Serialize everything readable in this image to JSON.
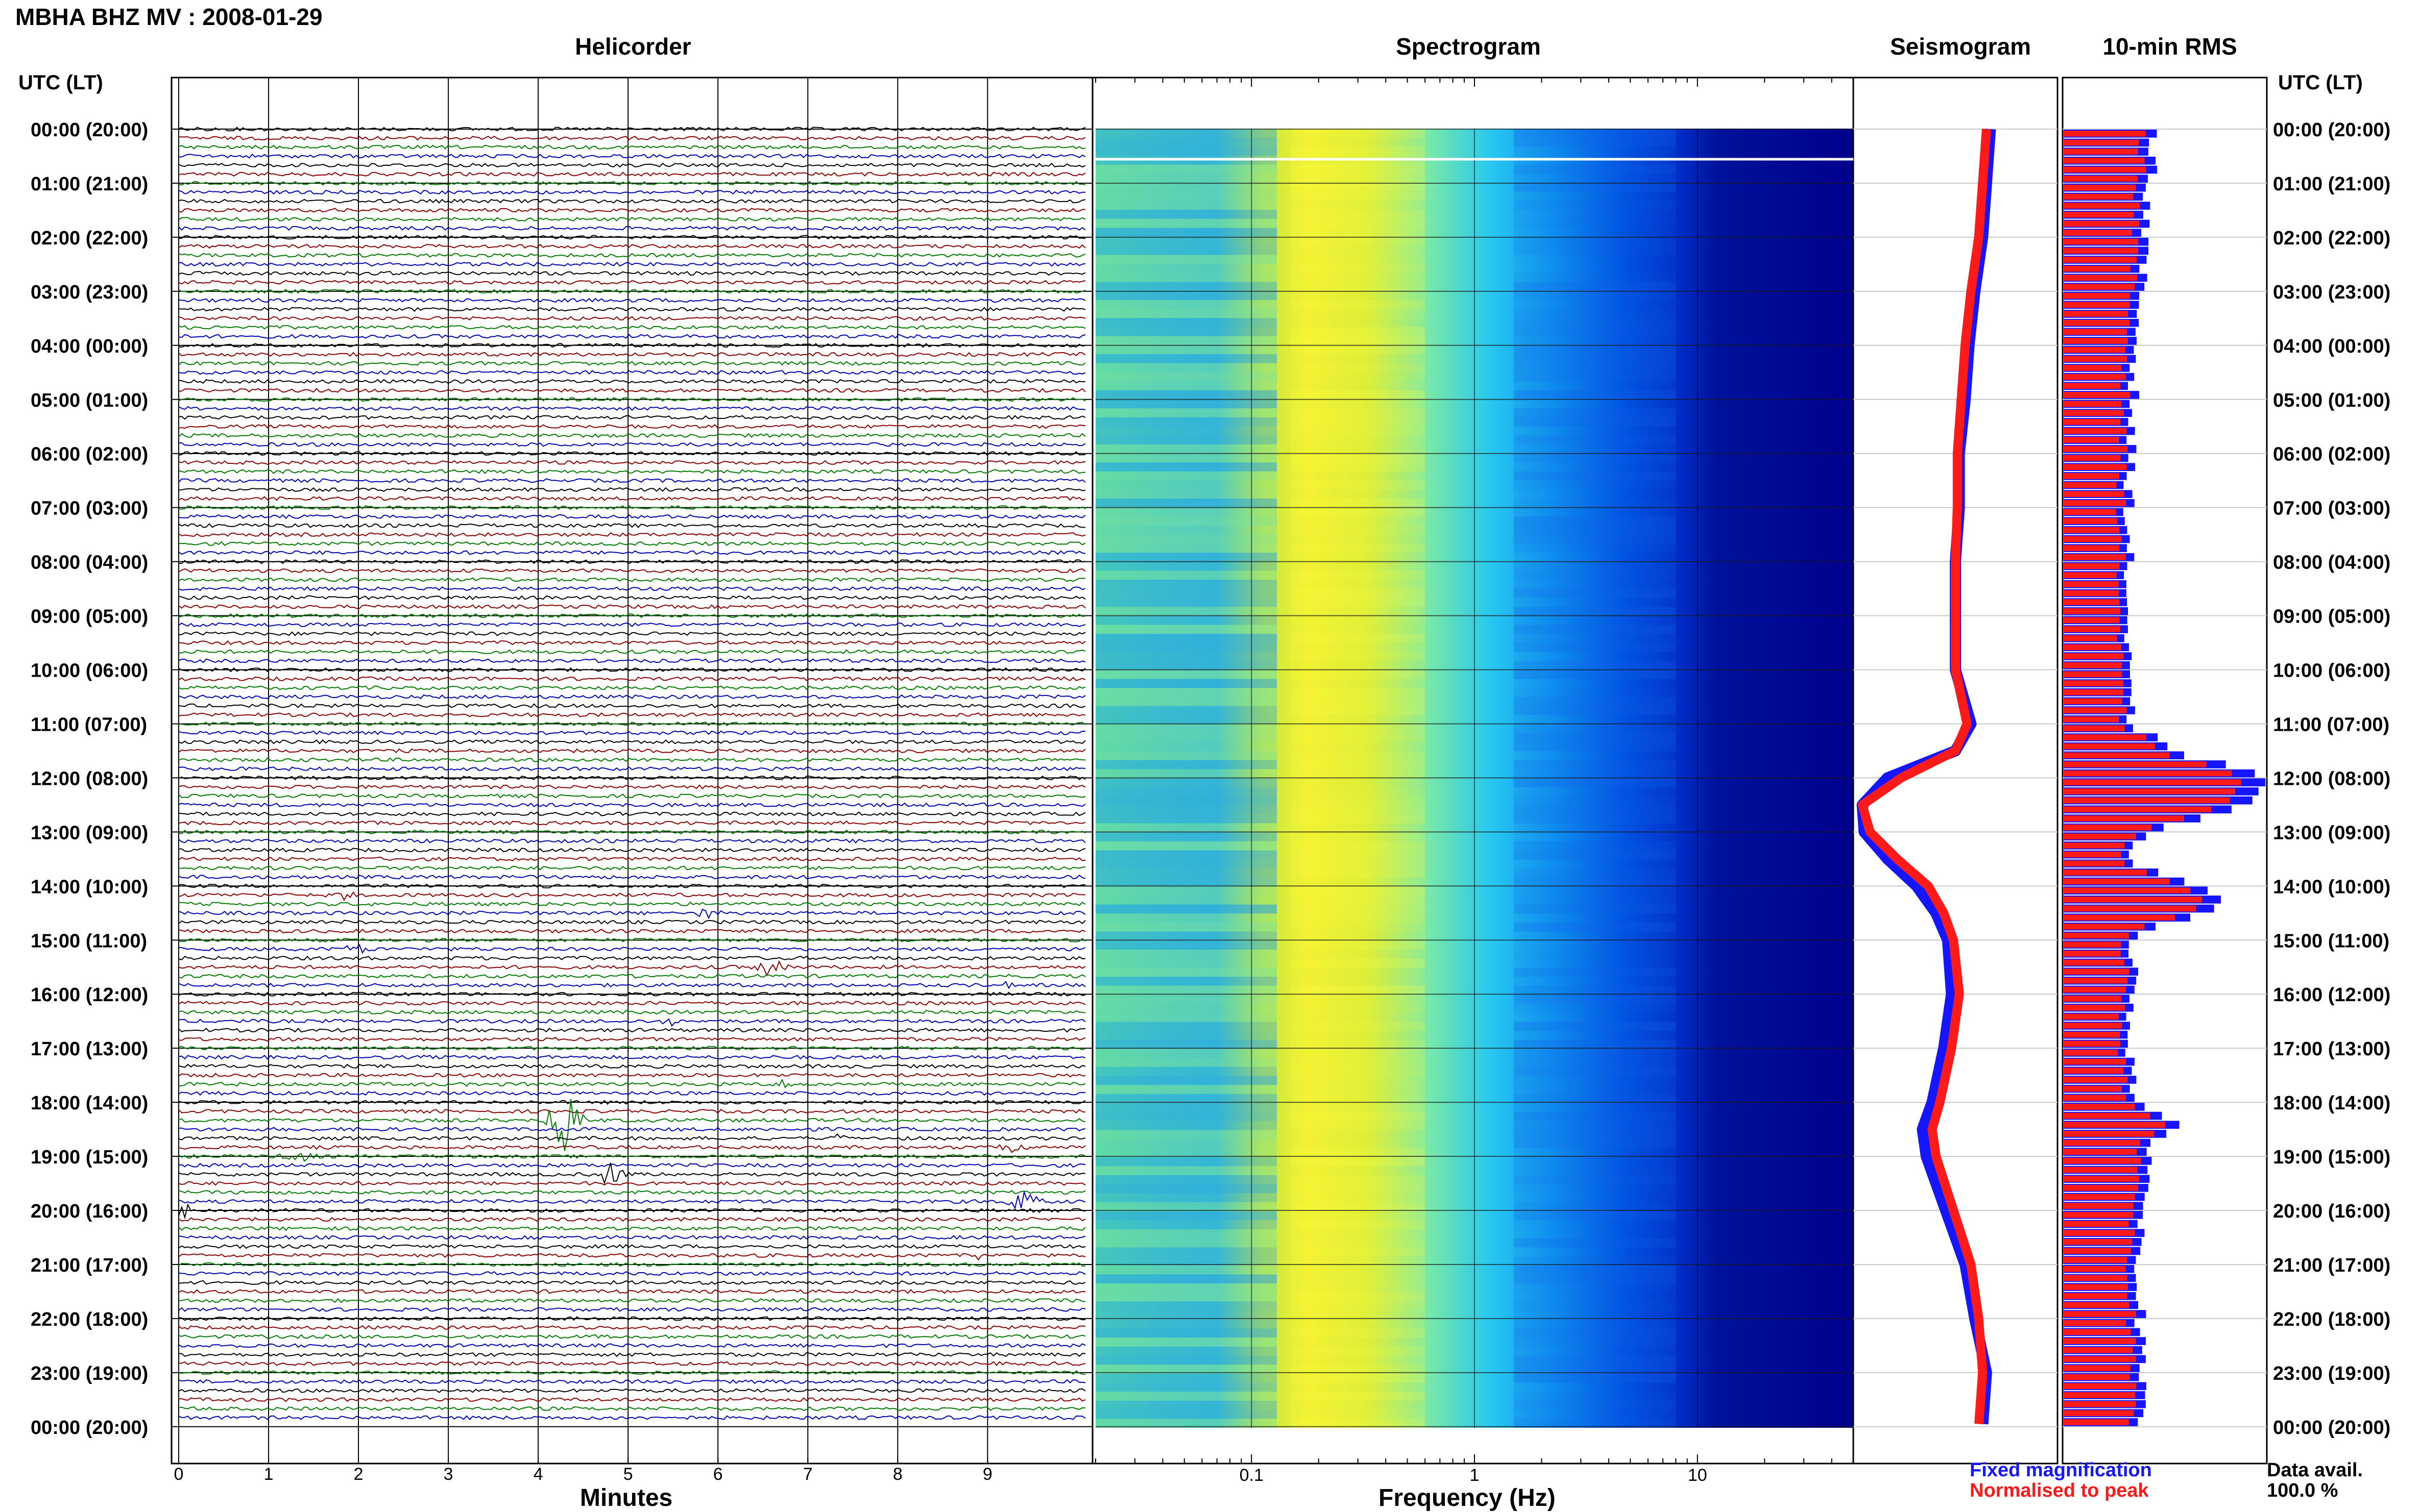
{
  "header": {
    "title": "MBHA BHZ MV : 2008-01-29"
  },
  "panels": {
    "helicorder": "Helicorder",
    "spectrogram": "Spectrogram",
    "seismogram": "Seismogram",
    "rms": "10-min RMS"
  },
  "time_axis": {
    "header_left": "UTC (LT)",
    "header_right": "UTC (LT)",
    "labels": [
      "00:00 (20:00)",
      "01:00 (21:00)",
      "02:00 (22:00)",
      "03:00 (23:00)",
      "04:00 (00:00)",
      "05:00 (01:00)",
      "06:00 (02:00)",
      "07:00 (03:00)",
      "08:00 (04:00)",
      "09:00 (05:00)",
      "10:00 (06:00)",
      "11:00 (07:00)",
      "12:00 (08:00)",
      "13:00 (09:00)",
      "14:00 (10:00)",
      "15:00 (11:00)",
      "16:00 (12:00)",
      "17:00 (13:00)",
      "18:00 (14:00)",
      "19:00 (15:00)",
      "20:00 (16:00)",
      "21:00 (17:00)",
      "22:00 (18:00)",
      "23:00 (19:00)",
      "00:00 (20:00)"
    ]
  },
  "minutes_axis": {
    "label": "Minutes",
    "ticks": [
      "0",
      "1",
      "2",
      "3",
      "4",
      "5",
      "6",
      "7",
      "8",
      "9"
    ]
  },
  "frequency_axis": {
    "label": "Frequency (Hz)",
    "ticks": [
      "0.1",
      "1",
      "10"
    ],
    "scale": "log"
  },
  "legend": {
    "fixed": "Fixed magnification",
    "normalised": "Normalised to peak"
  },
  "data_availability": {
    "label": "Data avail.",
    "value": "100.0 %"
  },
  "colors": {
    "trace_cycle": [
      "#000000",
      "#8b0000",
      "#007a00",
      "#0000b4"
    ],
    "fixed": "#1515ff",
    "normalised": "#ff1a1a",
    "spectrogram_low": "#00008c",
    "spectrogram_high": "#ffff28"
  },
  "chart_data": {
    "type": "heatmap",
    "rows_per_hour": 6,
    "hours": 24,
    "helicorder_events": [
      {
        "hour": 14,
        "minute": 1.8,
        "amp": 0.4
      },
      {
        "hour": 14,
        "minute": 5.9,
        "amp": 0.6
      },
      {
        "hour": 15,
        "minute": 9.3,
        "amp": 0.4
      },
      {
        "hour": 15,
        "minute": 2.0,
        "amp": 0.5
      },
      {
        "hour": 15,
        "minute": 6.6,
        "amp": 1.0
      },
      {
        "hour": 16,
        "minute": 5.5,
        "amp": 0.4
      },
      {
        "hour": 17,
        "minute": 6.7,
        "amp": 0.4
      },
      {
        "hour": 18,
        "minute": 4.3,
        "amp": 3.5
      },
      {
        "hour": 18,
        "minute": 9.3,
        "amp": 0.6
      },
      {
        "hour": 18,
        "minute": 7.3,
        "amp": 0.3
      },
      {
        "hour": 19,
        "minute": 1.3,
        "amp": 0.8
      },
      {
        "hour": 19,
        "minute": 4.8,
        "amp": 1.2
      },
      {
        "hour": 19,
        "minute": 9.4,
        "amp": 1.2
      },
      {
        "hour": 20,
        "minute": 0.1,
        "amp": 0.7
      },
      {
        "hour": 20,
        "minute": 8.9,
        "amp": 0.4
      }
    ],
    "seismogram_fixed": {
      "name": "Fixed magnification",
      "hours": [
        0,
        1,
        2,
        3,
        4,
        5,
        6,
        7,
        8,
        9,
        10,
        11,
        11.5,
        12,
        12.5,
        13,
        13.5,
        14,
        14.5,
        15,
        16,
        17,
        18,
        18.5,
        19,
        20,
        21,
        22,
        23,
        24
      ],
      "values": [
        0.68,
        0.66,
        0.64,
        0.6,
        0.57,
        0.55,
        0.52,
        0.52,
        0.5,
        0.5,
        0.5,
        0.58,
        0.5,
        0.15,
        0.02,
        0.03,
        0.15,
        0.3,
        0.4,
        0.46,
        0.48,
        0.44,
        0.38,
        0.33,
        0.35,
        0.45,
        0.55,
        0.6,
        0.66,
        0.64
      ]
    },
    "seismogram_normalised": {
      "name": "Normalised to peak",
      "hours": [
        0,
        1,
        2,
        3,
        4,
        5,
        6,
        7,
        8,
        9,
        10,
        11,
        11.5,
        12,
        12.5,
        13,
        13.5,
        14,
        14.5,
        15,
        16,
        17,
        18,
        18.5,
        19,
        20,
        21,
        22,
        23,
        24
      ],
      "values": [
        0.66,
        0.64,
        0.62,
        0.58,
        0.55,
        0.53,
        0.51,
        0.51,
        0.5,
        0.5,
        0.5,
        0.56,
        0.5,
        0.22,
        0.02,
        0.06,
        0.2,
        0.36,
        0.44,
        0.49,
        0.52,
        0.48,
        0.42,
        0.38,
        0.4,
        0.49,
        0.58,
        0.62,
        0.64,
        0.62
      ]
    },
    "rms_profile": {
      "hours": [
        0,
        2,
        4,
        6,
        8,
        10,
        11,
        11.5,
        12,
        12.5,
        13,
        13.5,
        14,
        14.3,
        14.8,
        15,
        16,
        17,
        18,
        18.4,
        18.8,
        19.3,
        20,
        21,
        22,
        23,
        24
      ],
      "values": [
        0.46,
        0.4,
        0.36,
        0.33,
        0.32,
        0.31,
        0.33,
        0.55,
        1.0,
        0.95,
        0.4,
        0.3,
        0.65,
        0.8,
        0.45,
        0.35,
        0.34,
        0.33,
        0.36,
        0.55,
        0.4,
        0.45,
        0.38,
        0.38,
        0.38,
        0.38,
        0.38
      ]
    },
    "spectrogram": {
      "freq_min_hz": 0.02,
      "freq_max_hz": 50,
      "peak_band_hz": [
        0.15,
        0.6
      ],
      "microseism_band_hz": [
        0.02,
        0.13
      ]
    }
  }
}
